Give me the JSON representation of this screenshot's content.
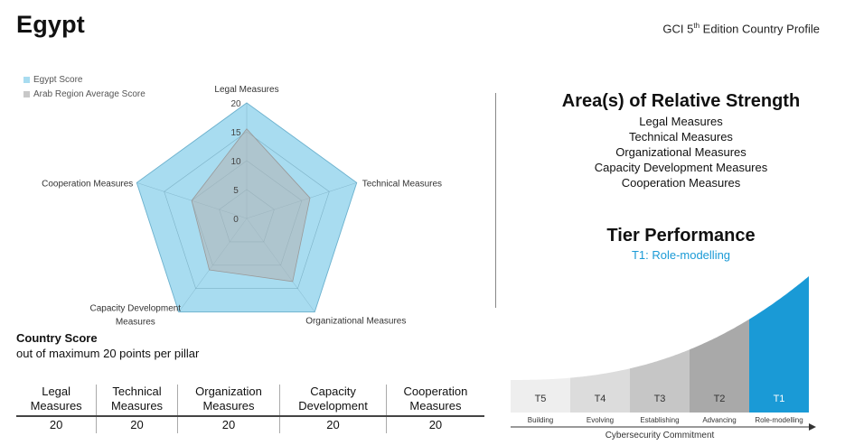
{
  "header": {
    "country": "Egypt",
    "edition_prefix": "GCI 5",
    "edition_sup": "th",
    "edition_suffix": " Edition Country Profile"
  },
  "colors": {
    "country_fill": "#a8dcf0",
    "country_stroke": "#7cc8e8",
    "region_fill": "#b3b3b3",
    "accent": "#1a9ad6"
  },
  "chart_data": {
    "type": "radar",
    "axes": [
      "Legal Measures",
      "Technical Measures",
      "Organizational Measures",
      "Capacity Development Measures",
      "Cooperation Measures"
    ],
    "axis_labels": [
      "Legal Measures",
      "Technical Measures",
      "Organizational Measures",
      "Capacity Development|Measures",
      "Cooperation Measures"
    ],
    "rlim": [
      0,
      20
    ],
    "ticks": [
      0,
      5,
      10,
      15,
      20
    ],
    "grid": true,
    "legend_position": "top-left",
    "series": [
      {
        "name": "Egypt Score",
        "values": [
          20,
          20,
          20,
          20,
          20
        ]
      },
      {
        "name": "Arab Region Average Score",
        "values": [
          15.5,
          11.5,
          13.5,
          11,
          10
        ]
      }
    ]
  },
  "country_score": {
    "title": "Country Score",
    "subtitle": "out of maximum 20 points per pillar",
    "columns": [
      {
        "line1": "Legal",
        "line2": "Measures",
        "value": "20"
      },
      {
        "line1": "Technical",
        "line2": "Measures",
        "value": "20"
      },
      {
        "line1": "Organization",
        "line2": "Measures",
        "value": "20"
      },
      {
        "line1": "Capacity",
        "line2": "Development",
        "value": "20"
      },
      {
        "line1": "Cooperation",
        "line2": "Measures",
        "value": "20"
      }
    ]
  },
  "strength": {
    "title": "Area(s) of Relative Strength",
    "items": [
      "Legal Measures",
      "Technical Measures",
      "Organizational Measures",
      "Capacity Development Measures",
      "Cooperation Measures"
    ]
  },
  "tier": {
    "title": "Tier Performance",
    "value": "T1: Role-modelling",
    "axis_label": "Cybersecurity Commitment",
    "tiers": [
      {
        "code": "T5",
        "name": "Building",
        "color": "#eeeeee"
      },
      {
        "code": "T4",
        "name": "Evolving",
        "color": "#dcdcdc"
      },
      {
        "code": "T3",
        "name": "Establishing",
        "color": "#c6c6c6"
      },
      {
        "code": "T2",
        "name": "Advancing",
        "color": "#a9a9a9"
      },
      {
        "code": "T1",
        "name": "Role-modelling",
        "color": "#1a9ad6"
      }
    ],
    "highlight": "T1"
  }
}
